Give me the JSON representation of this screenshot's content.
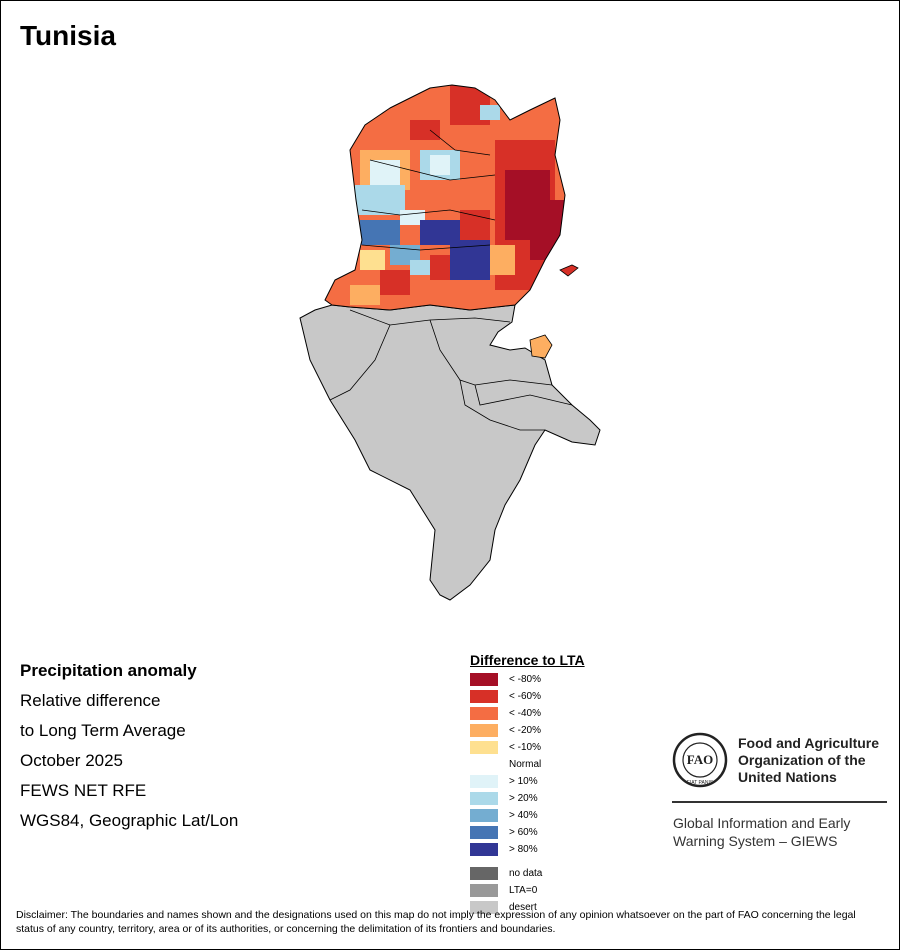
{
  "title": "Tunisia",
  "info": {
    "heading": "Precipitation anomaly",
    "line1": "Relative difference",
    "line2": "to Long Term Average",
    "period": "October 2025",
    "source": "FEWS NET RFE",
    "projection": "WGS84, Geographic Lat/Lon"
  },
  "legend": {
    "title": "Difference to LTA",
    "classes": [
      {
        "label": "< -80%",
        "color": "#a50f26"
      },
      {
        "label": "< -60%",
        "color": "#d73027"
      },
      {
        "label": "< -40%",
        "color": "#f46d43"
      },
      {
        "label": "< -20%",
        "color": "#fdae61"
      },
      {
        "label": "< -10%",
        "color": "#fee090"
      },
      {
        "label": "Normal",
        "color": "#ffffff"
      },
      {
        "label": "> 10%",
        "color": "#e0f3f8"
      },
      {
        "label": "> 20%",
        "color": "#abd9e9"
      },
      {
        "label": "> 40%",
        "color": "#74add1"
      },
      {
        "label": "> 60%",
        "color": "#4575b4"
      },
      {
        "label": "> 80%",
        "color": "#313695"
      }
    ],
    "extra": [
      {
        "label": "no data",
        "color": "#666666"
      },
      {
        "label": "LTA=0",
        "color": "#999999"
      },
      {
        "label": "desert",
        "color": "#c8c8c8"
      }
    ]
  },
  "org": {
    "name_line1": "Food and Agriculture",
    "name_line2": "Organization of the",
    "name_line3": "United Nations",
    "system_line1": "Global Information and Early",
    "system_line2": "Warning System – GIEWS",
    "logo_text": "FAO",
    "motto": "FIAT PANIS"
  },
  "disclaimer": "Disclaimer: The boundaries and names shown and the designations used on this map do not imply the expression of any opinion whatsoever on the part of FAO concerning the legal status of any country, territory, area or of its authorities, or concerning the delimitation of its frontiers and boundaries."
}
